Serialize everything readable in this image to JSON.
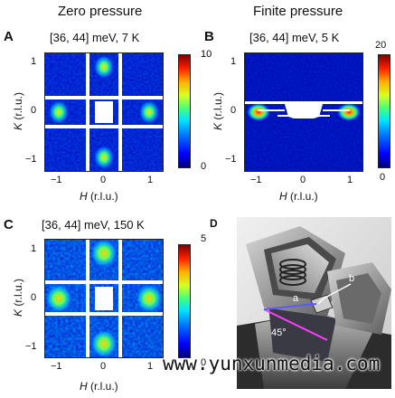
{
  "columns": {
    "left": "Zero pressure",
    "right": "Finite pressure"
  },
  "panels": {
    "A": {
      "letter": "A",
      "title": "[36, 44] meV, 7 K",
      "cbar_max": "10",
      "cbar_min": "0"
    },
    "B": {
      "letter": "B",
      "title": "[36, 44] meV, 5 K",
      "cbar_max": "20",
      "cbar_min": "0"
    },
    "C": {
      "letter": "C",
      "title": "[36, 44] meV, 150 K",
      "cbar_max": "5",
      "cbar_min": "0"
    },
    "D": {
      "letter": "D",
      "label_a": "a",
      "label_b": "b",
      "angle": "45°"
    }
  },
  "axes": {
    "xlabel_var": "H",
    "xlabel_unit": " (r.l.u.)",
    "ylabel_var": "K",
    "ylabel_unit": " (r.l.u.)",
    "xticks": [
      "−1",
      "0",
      "1"
    ],
    "yticks": [
      "1",
      "0",
      "−1"
    ]
  },
  "watermark": "www.yunxunmedia.com",
  "chart_data": [
    {
      "type": "heatmap",
      "panel": "A",
      "title": "[36, 44] meV, 7 K",
      "xlabel": "H (r.l.u.)",
      "ylabel": "K (r.l.u.)",
      "xlim": [
        -1.3,
        1.3
      ],
      "ylim": [
        -1.3,
        1.3
      ],
      "color_range": [
        0,
        10
      ],
      "peaks": [
        {
          "x": 0,
          "y": 1
        },
        {
          "x": 0,
          "y": -1
        },
        {
          "x": -1,
          "y": 0
        },
        {
          "x": 1,
          "y": 0
        }
      ]
    },
    {
      "type": "heatmap",
      "panel": "B",
      "title": "[36, 44] meV, 5 K",
      "xlabel": "H (r.l.u.)",
      "ylabel": "K (r.l.u.)",
      "xlim": [
        -1.3,
        1.3
      ],
      "ylim": [
        -1.3,
        1.3
      ],
      "color_range": [
        0,
        20
      ],
      "peaks": [
        {
          "x": -1,
          "y": 0
        },
        {
          "x": 1,
          "y": 0
        }
      ]
    },
    {
      "type": "heatmap",
      "panel": "C",
      "title": "[36, 44] meV, 150 K",
      "xlabel": "H (r.l.u.)",
      "ylabel": "K (r.l.u.)",
      "xlim": [
        -1.3,
        1.3
      ],
      "ylim": [
        -1.3,
        1.3
      ],
      "color_range": [
        0,
        5
      ],
      "peaks": [
        {
          "x": 0,
          "y": 1
        },
        {
          "x": 0,
          "y": -1
        },
        {
          "x": -1,
          "y": 0
        },
        {
          "x": 1,
          "y": 0
        }
      ]
    }
  ]
}
